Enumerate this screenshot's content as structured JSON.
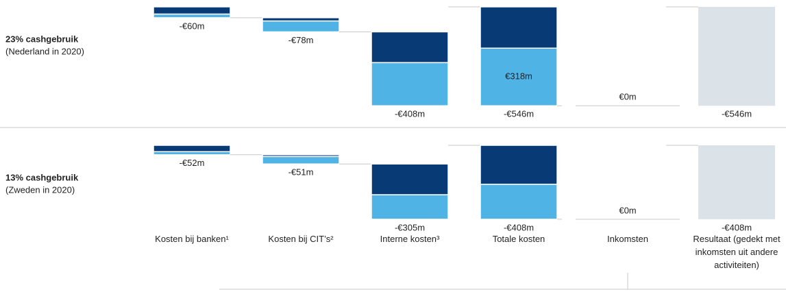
{
  "categories": [
    "Kosten bij banken¹",
    "Kosten bij CIT’s²",
    "Interne kosten³",
    "Totale kosten",
    "Inkomsten",
    "Resultaat (gedekt met inkomsten uit andere activiteiten)"
  ],
  "chart_data": [
    {
      "type": "waterfall",
      "title": "23% cashgebruik",
      "subtitle": "(Nederland in 2020)",
      "values": [
        -60,
        -78,
        -408,
        -546,
        0,
        -546
      ],
      "value_labels": [
        "-€60m",
        "-€78m",
        "-€408m",
        "-€546m",
        "€0m",
        "-€546m"
      ],
      "totals": [
        false,
        false,
        false,
        true,
        false,
        true
      ],
      "total_color": "#dbe3e9",
      "series": [
        {
          "color": "#083a75",
          "values": [
            40,
            18,
            170,
            228,
            null,
            null
          ]
        },
        {
          "color": "#50b3e5",
          "values": [
            20,
            60,
            238,
            318,
            null,
            null
          ],
          "value_labels": [
            null,
            null,
            null,
            "€318m",
            null,
            null
          ]
        }
      ],
      "ylim": [
        -560,
        0
      ]
    },
    {
      "type": "waterfall",
      "title": "13% cashgebruik",
      "subtitle": "(Zweden in 2020)",
      "values": [
        -52,
        -51,
        -305,
        -408,
        0,
        -408
      ],
      "value_labels": [
        "-€52m",
        "-€51m",
        "-€305m",
        "-€408m",
        "€0m",
        "-€408m"
      ],
      "totals": [
        false,
        false,
        false,
        true,
        false,
        true
      ],
      "total_color": "#dbe3e9",
      "series": [
        {
          "color": "#083a75",
          "values": [
            35,
            10,
            170,
            215,
            null,
            null
          ]
        },
        {
          "color": "#50b3e5",
          "values": [
            17,
            41,
            135,
            193,
            null,
            null
          ]
        }
      ],
      "ylim": [
        -560,
        0
      ]
    }
  ]
}
